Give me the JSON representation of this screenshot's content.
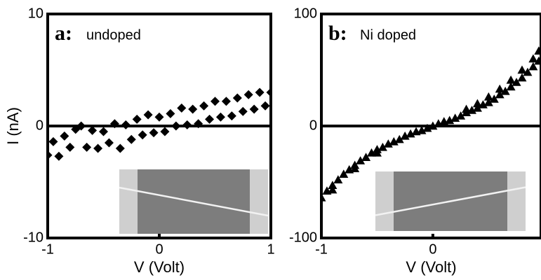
{
  "chart_data": [
    {
      "type": "scatter",
      "label": "a:",
      "title": "undoped",
      "xlabel": "V (Volt)",
      "ylabel": "I (nA)",
      "marker": "diamond",
      "color": "#000000",
      "xlim": [
        -1,
        1
      ],
      "ylim": [
        -10,
        10
      ],
      "xticks": [
        -1,
        0,
        1
      ],
      "yticks": [
        -10,
        0,
        10
      ],
      "x": [
        -1,
        -0.95,
        -0.9,
        -0.85,
        -0.8,
        -0.75,
        -0.7,
        -0.65,
        -0.6,
        -0.55,
        -0.5,
        -0.45,
        -0.4,
        -0.35,
        -0.3,
        -0.25,
        -0.2,
        -0.15,
        -0.1,
        -0.05,
        0,
        0.05,
        0.1,
        0.15,
        0.2,
        0.25,
        0.3,
        0.35,
        0.4,
        0.45,
        0.5,
        0.55,
        0.6,
        0.65,
        0.7,
        0.75,
        0.8,
        0.85,
        0.9,
        0.95,
        1
      ],
      "y": [
        -2.6,
        -1.4,
        -2.7,
        -0.9,
        -1.9,
        -0.3,
        0.0,
        -1.9,
        -0.4,
        -2.0,
        -0.5,
        -1.5,
        0.2,
        -2.0,
        0.1,
        -1.2,
        0.6,
        -0.8,
        1.0,
        -0.6,
        0.8,
        -0.5,
        1.1,
        0.0,
        1.6,
        0.1,
        1.5,
        0.2,
        1.8,
        0.6,
        2.2,
        0.8,
        2.2,
        0.9,
        2.5,
        1.3,
        2.8,
        1.5,
        3.0,
        1.8,
        3.0
      ]
    },
    {
      "type": "scatter",
      "label": "b:",
      "title": "Ni doped",
      "xlabel": "V (Volt)",
      "marker": "triangle",
      "color": "#000000",
      "xlim": [
        -1,
        0.97
      ],
      "ylim": [
        -100,
        100
      ],
      "xticks": [
        -1,
        0
      ],
      "yticks": [
        -100,
        0,
        100
      ],
      "x": [
        -1,
        -0.95,
        -0.9,
        -0.85,
        -0.8,
        -0.75,
        -0.7,
        -0.65,
        -0.6,
        -0.55,
        -0.5,
        -0.45,
        -0.4,
        -0.35,
        -0.3,
        -0.25,
        -0.2,
        -0.15,
        -0.1,
        -0.05,
        0,
        0.05,
        0.1,
        0.15,
        0.2,
        0.25,
        0.3,
        0.35,
        0.4,
        0.45,
        0.5,
        0.55,
        0.6,
        0.65,
        0.7,
        0.75,
        0.8,
        0.85,
        0.9,
        0.95,
        -0.9,
        -0.7,
        -0.5,
        0.3,
        0.4,
        0.5,
        0.6,
        0.7,
        0.8,
        0.9,
        0.95
      ],
      "y": [
        -64,
        -58,
        -53,
        -48,
        -43,
        -39,
        -35,
        -31,
        -28,
        -24,
        -21,
        -19,
        -16,
        -14,
        -12,
        -9,
        -7,
        -5,
        -4,
        -2,
        0,
        2,
        4,
        5,
        7,
        9,
        12,
        14,
        16,
        19,
        21,
        24,
        28,
        31,
        35,
        39,
        43,
        48,
        53,
        58,
        -57,
        -38,
        -24,
        15,
        20,
        26,
        33,
        41,
        50,
        60,
        67
      ]
    }
  ]
}
